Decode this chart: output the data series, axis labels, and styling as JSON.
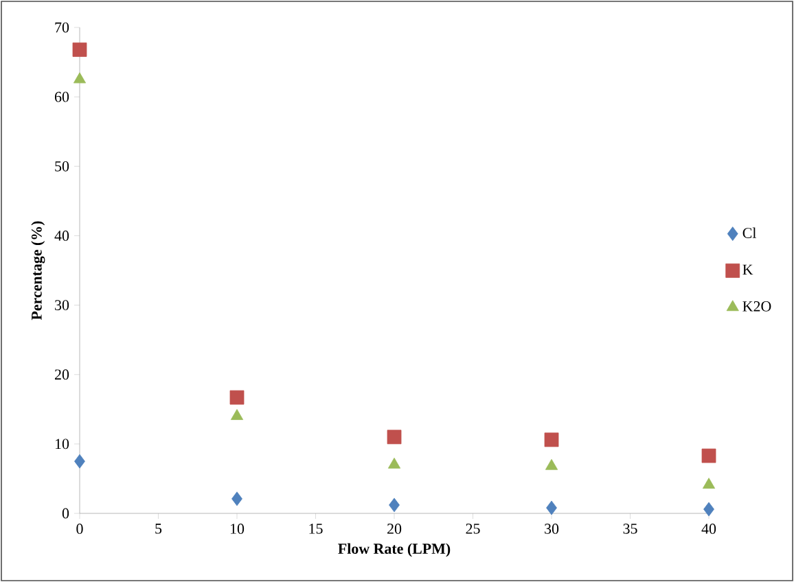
{
  "chart_data": {
    "type": "scatter",
    "xlabel": "Flow Rate (LPM)",
    "ylabel": "Percentage (%)",
    "x": [
      0,
      10,
      20,
      30,
      40
    ],
    "series": [
      {
        "name": "Cl",
        "color": "#4f81bd",
        "marker": "diamond",
        "values": [
          7.5,
          2.1,
          1.2,
          0.8,
          0.6
        ]
      },
      {
        "name": "K",
        "color": "#c0504d",
        "marker": "square",
        "values": [
          66.8,
          16.7,
          11,
          10.6,
          8.3
        ]
      },
      {
        "name": "K2O",
        "color": "#9bbb59",
        "marker": "triangle",
        "values": [
          62.5,
          14,
          7,
          6.8,
          4.1
        ]
      }
    ],
    "xlim": [
      0,
      40
    ],
    "xticks": [
      0,
      5,
      10,
      15,
      20,
      25,
      30,
      35,
      40
    ],
    "ylim": [
      0,
      70
    ],
    "yticks": [
      0,
      10,
      20,
      30,
      40,
      50,
      60,
      70
    ],
    "grid": false,
    "legend": "right"
  }
}
